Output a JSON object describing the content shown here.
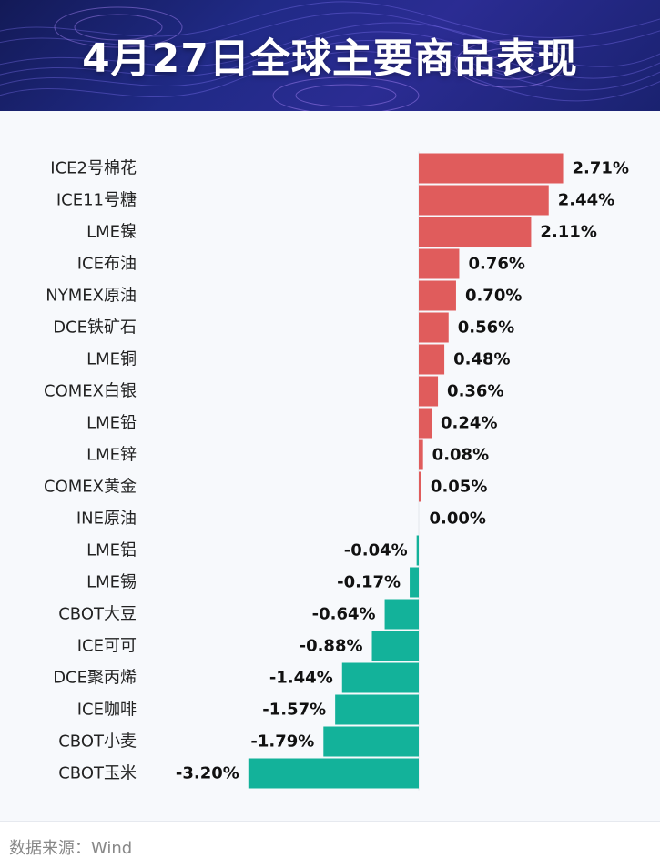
{
  "header": {
    "title": "4月27日全球主要商品表现"
  },
  "colors": {
    "positive": "#e05c5c",
    "negative": "#13b29a",
    "label": "#222222",
    "value": "#111111"
  },
  "chart_data": {
    "type": "bar",
    "orientation": "horizontal",
    "unit": "%",
    "categories": [
      "ICE2号棉花",
      "ICE11号糖",
      "LME镍",
      "ICE布油",
      "NYMEX原油",
      "DCE铁矿石",
      "LME铜",
      "COMEX白银",
      "LME铅",
      "LME锌",
      "COMEX黄金",
      "INE原油",
      "LME铝",
      "LME锡",
      "CBOT大豆",
      "ICE可可",
      "DCE聚丙烯",
      "ICE咖啡",
      "CBOT小麦",
      "CBOT玉米"
    ],
    "values": [
      2.71,
      2.44,
      2.11,
      0.76,
      0.7,
      0.56,
      0.48,
      0.36,
      0.24,
      0.08,
      0.05,
      0.0,
      -0.04,
      -0.17,
      -0.64,
      -0.88,
      -1.44,
      -1.57,
      -1.79,
      -3.2
    ],
    "value_labels": [
      "2.71%",
      "2.44%",
      "2.11%",
      "0.76%",
      "0.70%",
      "0.56%",
      "0.48%",
      "0.36%",
      "0.24%",
      "0.08%",
      "0.05%",
      "0.00%",
      "-0.04%",
      "-0.17%",
      "-0.64%",
      "-0.88%",
      "-1.44%",
      "-1.57%",
      "-1.79%",
      "-3.20%"
    ],
    "title": "4月27日全球主要商品表现",
    "xlabel": "",
    "ylabel": "",
    "xlim": [
      -3.2,
      2.71
    ],
    "grid": false,
    "legend": "none"
  },
  "footer": {
    "source": "数据来源：Wind"
  }
}
